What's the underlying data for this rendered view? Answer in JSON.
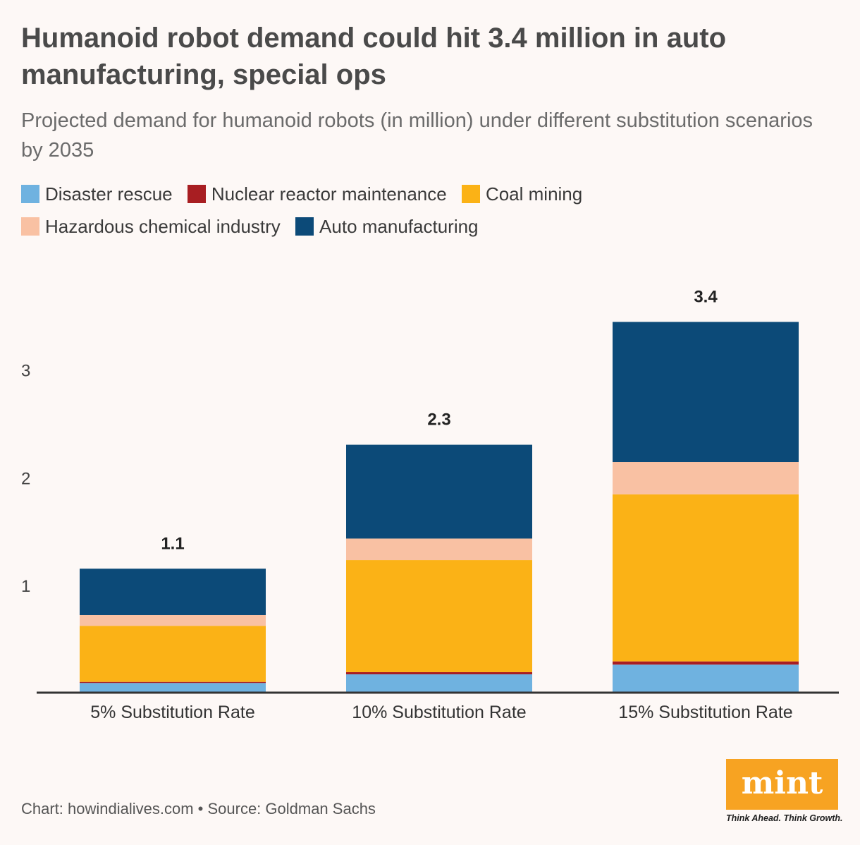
{
  "title": "Humanoid robot demand could hit 3.4 million in auto manufacturing, special ops",
  "subtitle": "Projected demand for humanoid robots (in million) under different substitution scenarios by 2035",
  "legend": [
    {
      "label": "Disaster rescue",
      "color": "#6fb2e0"
    },
    {
      "label": "Nuclear reactor maintenance",
      "color": "#a81e22"
    },
    {
      "label": "Coal mining",
      "color": "#fbb216"
    },
    {
      "label": "Hazardous chemical industry",
      "color": "#f9c1a3"
    },
    {
      "label": "Auto manufacturing",
      "color": "#0c4a78"
    }
  ],
  "chart_data": {
    "type": "bar",
    "stacked": true,
    "categories": [
      "5% Substitution Rate",
      "10% Substitution Rate",
      "15% Substitution Rate"
    ],
    "series": [
      {
        "name": "Disaster rescue",
        "color": "#6fb2e0",
        "values": [
          0.09,
          0.17,
          0.26
        ]
      },
      {
        "name": "Nuclear reactor maintenance",
        "color": "#a81e22",
        "values": [
          0.01,
          0.02,
          0.03
        ]
      },
      {
        "name": "Coal mining",
        "color": "#fbb216",
        "values": [
          0.52,
          1.04,
          1.55
        ]
      },
      {
        "name": "Hazardous chemical industry",
        "color": "#f9c1a3",
        "values": [
          0.1,
          0.2,
          0.3
        ]
      },
      {
        "name": "Auto manufacturing",
        "color": "#0c4a78",
        "values": [
          0.43,
          0.87,
          1.3
        ]
      }
    ],
    "totals": [
      "1.1",
      "2.3",
      "3.4"
    ],
    "yticks": [
      1,
      2,
      3
    ],
    "ylim": [
      0,
      3.4
    ],
    "xlabel": "",
    "ylabel": ""
  },
  "footer": "Chart: howindialives.com • Source: Goldman Sachs",
  "logo": {
    "text": "mint",
    "tagline": "Think Ahead. Think Growth."
  }
}
